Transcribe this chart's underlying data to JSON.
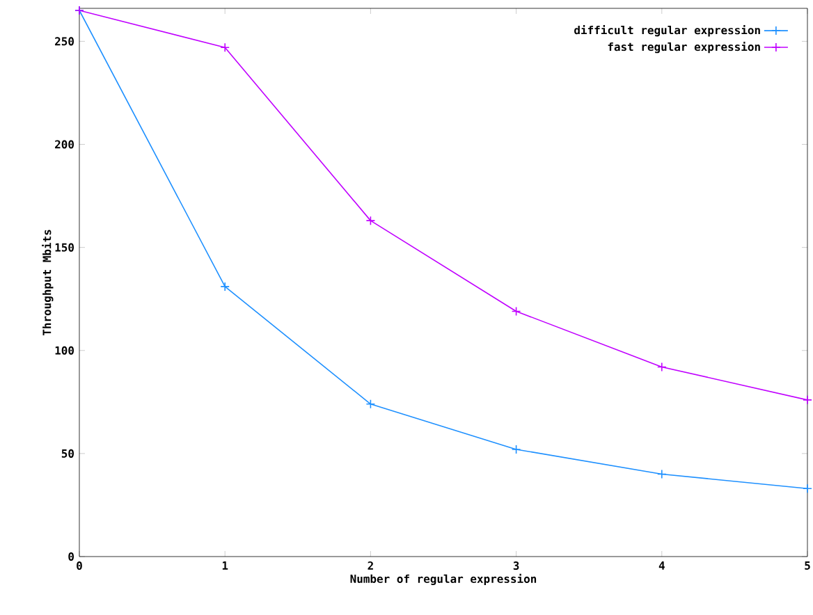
{
  "chart_data": {
    "type": "line",
    "xlabel": "Number of regular expression",
    "ylabel": "Throughput Mbits",
    "x": [
      0,
      1,
      2,
      3,
      4,
      5
    ],
    "series": [
      {
        "name": "difficult regular expression",
        "color": "#1e90ff",
        "marker": "cross",
        "values": [
          265,
          131,
          74,
          52,
          40,
          33
        ]
      },
      {
        "name": "fast regular expression",
        "color": "#c000ff",
        "marker": "cross",
        "values": [
          265,
          247,
          163,
          119,
          92,
          76
        ]
      }
    ],
    "xlim": [
      0,
      5
    ],
    "ylim": [
      0,
      266
    ],
    "xticks": [
      0,
      1,
      2,
      3,
      4,
      5
    ],
    "yticks": [
      0,
      50,
      100,
      150,
      200,
      250
    ],
    "grid": false,
    "legend": "top right"
  }
}
